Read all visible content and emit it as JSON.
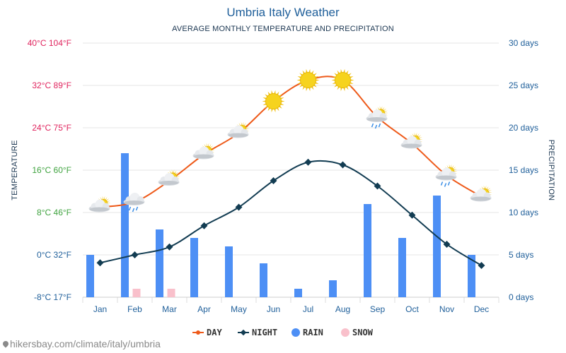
{
  "page": {
    "title": "Umbria Italy Weather",
    "subtitle": "AVERAGE MONTHLY TEMPERATURE AND PRECIPITATION",
    "watermark": "hikersbay.com/climate/italy/umbria"
  },
  "colors": {
    "day": "#ee5a1a",
    "night": "#123c52",
    "rain": "#4d8ff5",
    "snow": "#f9c0cb",
    "tick_hot": "#e0245e",
    "tick_mild": "#3fa33f",
    "tick_cold": "#1f5f9a",
    "sun": "#f6d31e"
  },
  "chart_data": {
    "type": "line",
    "title": "Umbria Italy Weather",
    "subtitle": "AVERAGE MONTHLY TEMPERATURE AND PRECIPITATION",
    "categories": [
      "Jan",
      "Feb",
      "Mar",
      "Apr",
      "May",
      "Jun",
      "Jul",
      "Aug",
      "Sep",
      "Oct",
      "Nov",
      "Dec"
    ],
    "y_left": {
      "label": "TEMPERATURE",
      "min": -8,
      "max": 40,
      "ticks": [
        "-8°C 17°F",
        "0°C 32°F",
        "8°C 46°F",
        "16°C 60°F",
        "24°C 75°F",
        "32°C 89°F",
        "40°C 104°F"
      ]
    },
    "y_right": {
      "label": "PRECIPITATION",
      "min": 0,
      "max": 30,
      "ticks": [
        "0 days",
        "5 days",
        "10 days",
        "15 days",
        "20 days",
        "25 days",
        "30 days"
      ]
    },
    "series": [
      {
        "name": "DAY",
        "type": "line",
        "axis": "left",
        "values": [
          9,
          10,
          14,
          19,
          23,
          29,
          33,
          33,
          26,
          21,
          15,
          11
        ]
      },
      {
        "name": "NIGHT",
        "type": "line",
        "axis": "left",
        "values": [
          -1.5,
          0,
          1.5,
          5.5,
          9,
          14,
          17.5,
          17,
          13,
          7.5,
          2,
          -2
        ]
      },
      {
        "name": "RAIN",
        "type": "bar",
        "axis": "right",
        "values": [
          5,
          17,
          8,
          7,
          6,
          4,
          1,
          2,
          11,
          7,
          12,
          5
        ]
      },
      {
        "name": "SNOW",
        "type": "bar",
        "axis": "right",
        "values": [
          0,
          1,
          1,
          0,
          0,
          0,
          0,
          0,
          0,
          0,
          0,
          0
        ]
      }
    ],
    "weather_icons": [
      "sun-cloud",
      "rain-cloud",
      "sun-cloud",
      "sun-cloud",
      "sun-cloud",
      "sun",
      "sun",
      "sun",
      "sun-rain-cloud",
      "sun-cloud",
      "sun-rain-cloud",
      "sun-cloud"
    ],
    "grid": true,
    "legend": {
      "position": "bottom",
      "entries": [
        "DAY",
        "NIGHT",
        "RAIN",
        "SNOW"
      ]
    }
  }
}
